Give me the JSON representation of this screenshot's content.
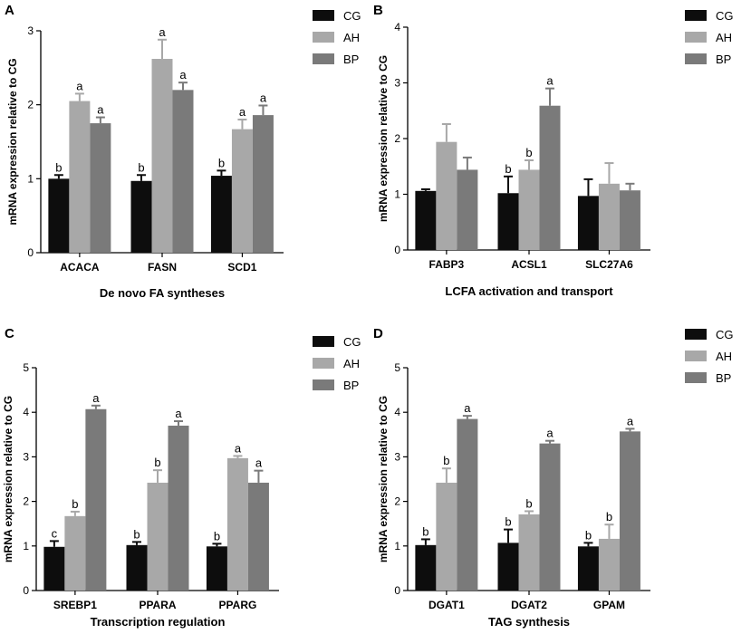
{
  "figure": {
    "series_names": [
      "CG",
      "AH",
      "BP"
    ],
    "colors": {
      "CG": "#0d0d0d",
      "AH": "#a8a8a8",
      "BP": "#7a7a7a"
    }
  },
  "chart_data": [
    {
      "panel": "A",
      "type": "bar",
      "xlabel": "De novo FA syntheses",
      "ylabel": "mRNA expression relative to CG",
      "ylim": [
        0,
        3
      ],
      "yticks": [
        0,
        1,
        2,
        3
      ],
      "categories": [
        "ACACA",
        "FASN",
        "SCD1"
      ],
      "series": [
        {
          "name": "CG",
          "values": [
            1.0,
            0.97,
            1.04
          ],
          "errors": [
            0.05,
            0.08,
            0.07
          ],
          "labels": [
            "b",
            "b",
            "b"
          ]
        },
        {
          "name": "AH",
          "values": [
            2.05,
            2.62,
            1.67
          ],
          "errors": [
            0.1,
            0.26,
            0.13
          ],
          "labels": [
            "a",
            "a",
            "a"
          ]
        },
        {
          "name": "BP",
          "values": [
            1.75,
            2.2,
            1.86
          ],
          "errors": [
            0.08,
            0.1,
            0.13
          ],
          "labels": [
            "a",
            "a",
            "a"
          ]
        }
      ],
      "legend": "top-right"
    },
    {
      "panel": "B",
      "type": "bar",
      "xlabel": "LCFA activation and transport",
      "ylabel": "mRNA expression relative to CG",
      "ylim": [
        0,
        4
      ],
      "yticks": [
        0,
        1,
        2,
        3,
        4
      ],
      "categories": [
        "FABP3",
        "ACSL1",
        "SLC27A6"
      ],
      "series": [
        {
          "name": "CG",
          "values": [
            1.06,
            1.02,
            0.97
          ],
          "errors": [
            0.03,
            0.3,
            0.3
          ],
          "labels": [
            "",
            "b",
            ""
          ]
        },
        {
          "name": "AH",
          "values": [
            1.94,
            1.44,
            1.19
          ],
          "errors": [
            0.32,
            0.17,
            0.37
          ],
          "labels": [
            "",
            "b",
            ""
          ]
        },
        {
          "name": "BP",
          "values": [
            1.44,
            2.59,
            1.07
          ],
          "errors": [
            0.22,
            0.31,
            0.12
          ],
          "labels": [
            "",
            "a",
            ""
          ]
        }
      ],
      "legend": "top-right"
    },
    {
      "panel": "C",
      "type": "bar",
      "xlabel": "Transcription regulation",
      "ylabel": "mRNA expression relative to CG",
      "ylim": [
        0,
        5
      ],
      "yticks": [
        0,
        1,
        2,
        3,
        4,
        5
      ],
      "categories": [
        "SREBP1",
        "PPARA",
        "PPARG"
      ],
      "series": [
        {
          "name": "CG",
          "values": [
            0.98,
            1.02,
            0.99
          ],
          "errors": [
            0.13,
            0.07,
            0.06
          ],
          "labels": [
            "c",
            "b",
            "b"
          ]
        },
        {
          "name": "AH",
          "values": [
            1.67,
            2.42,
            2.97
          ],
          "errors": [
            0.1,
            0.28,
            0.05
          ],
          "labels": [
            "b",
            "b",
            "a"
          ]
        },
        {
          "name": "BP",
          "values": [
            4.07,
            3.7,
            2.42
          ],
          "errors": [
            0.08,
            0.1,
            0.27
          ],
          "labels": [
            "a",
            "a",
            "a"
          ]
        }
      ],
      "legend": "top-right"
    },
    {
      "panel": "D",
      "type": "bar",
      "xlabel": "TAG synthesis",
      "ylabel": "mRNA expression relative to CG",
      "ylim": [
        0,
        5
      ],
      "yticks": [
        0,
        1,
        2,
        3,
        4,
        5
      ],
      "categories": [
        "DGAT1",
        "DGAT2",
        "GPAM"
      ],
      "series": [
        {
          "name": "CG",
          "values": [
            1.02,
            1.07,
            0.99
          ],
          "errors": [
            0.13,
            0.3,
            0.08
          ],
          "labels": [
            "b",
            "b",
            "b"
          ]
        },
        {
          "name": "AH",
          "values": [
            2.42,
            1.71,
            1.16
          ],
          "errors": [
            0.32,
            0.07,
            0.32
          ],
          "labels": [
            "b",
            "b",
            "b"
          ]
        },
        {
          "name": "BP",
          "values": [
            3.85,
            3.3,
            3.57
          ],
          "errors": [
            0.07,
            0.06,
            0.06
          ],
          "labels": [
            "a",
            "a",
            "a"
          ]
        }
      ],
      "legend": "top-right"
    }
  ]
}
